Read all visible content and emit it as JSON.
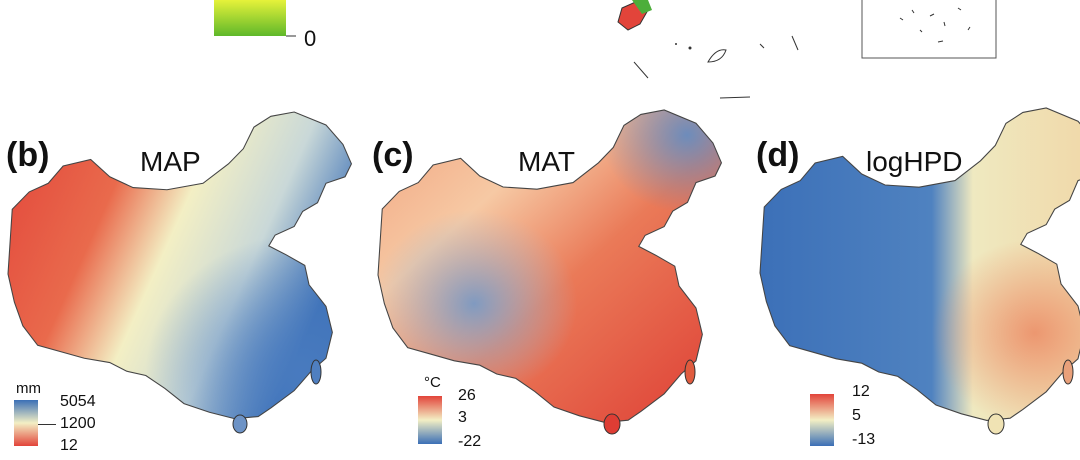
{
  "top_fragment": {
    "legend_zero": "0"
  },
  "panels": [
    {
      "letter": "(b)",
      "title": "MAP",
      "unit": "mm",
      "legend_ticks": [
        "5054",
        "1200",
        "12"
      ],
      "legend_colors": [
        "#3b6fb6",
        "#f3efc4",
        "#e2443a"
      ]
    },
    {
      "letter": "(c)",
      "title": "MAT",
      "unit": "°C",
      "legend_ticks": [
        "26",
        "3",
        "-22"
      ],
      "legend_colors": [
        "#e2443a",
        "#f3efc4",
        "#3b6fb6"
      ]
    },
    {
      "letter": "(d)",
      "title": "logHPD",
      "unit": "",
      "legend_ticks": [
        "12",
        "5",
        "-13"
      ],
      "legend_colors": [
        "#e2443a",
        "#f3efc4",
        "#3b6fb6"
      ]
    }
  ]
}
